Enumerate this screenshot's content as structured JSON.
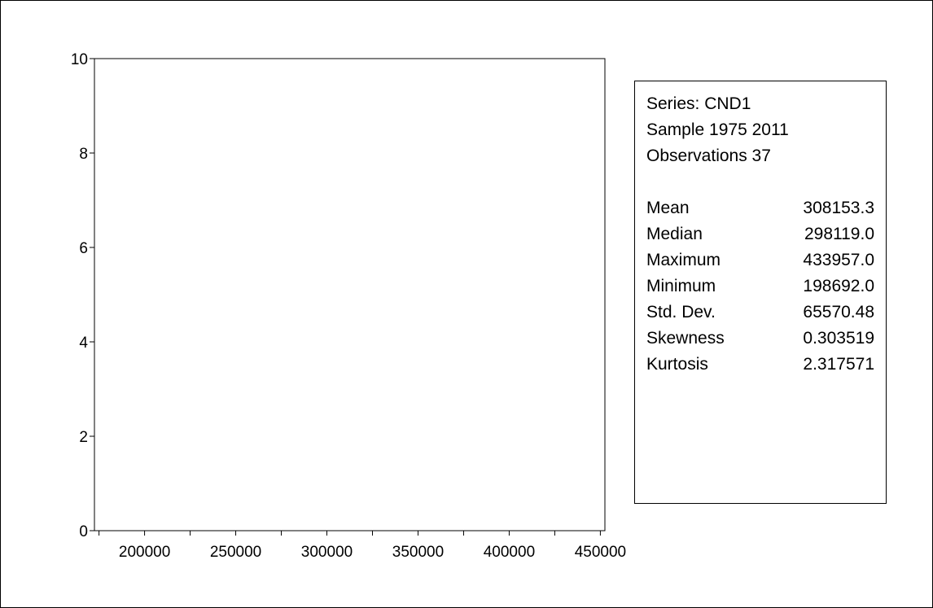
{
  "chart_data": {
    "type": "bar",
    "title": "",
    "xlabel": "",
    "ylabel": "",
    "xlim": [
      172500,
      452500
    ],
    "ylim": [
      0,
      10
    ],
    "x_ticks": [
      200000,
      250000,
      300000,
      350000,
      400000,
      450000
    ],
    "y_ticks": [
      0,
      2,
      4,
      6,
      8,
      10
    ],
    "bins": [],
    "grid": false,
    "legend": "none"
  },
  "stats": {
    "series": "Series: CND1",
    "sample": "Sample 1975 2011",
    "observations": "Observations 37",
    "rows": [
      {
        "label": "Mean",
        "value": "308153.3"
      },
      {
        "label": "Median",
        "value": "298119.0"
      },
      {
        "label": "Maximum",
        "value": "433957.0"
      },
      {
        "label": "Minimum",
        "value": "198692.0"
      },
      {
        "label": "Std. Dev.",
        "value": "65570.48"
      },
      {
        "label": "Skewness",
        "value": "0.303519"
      },
      {
        "label": "Kurtosis",
        "value": "2.317571"
      }
    ]
  }
}
